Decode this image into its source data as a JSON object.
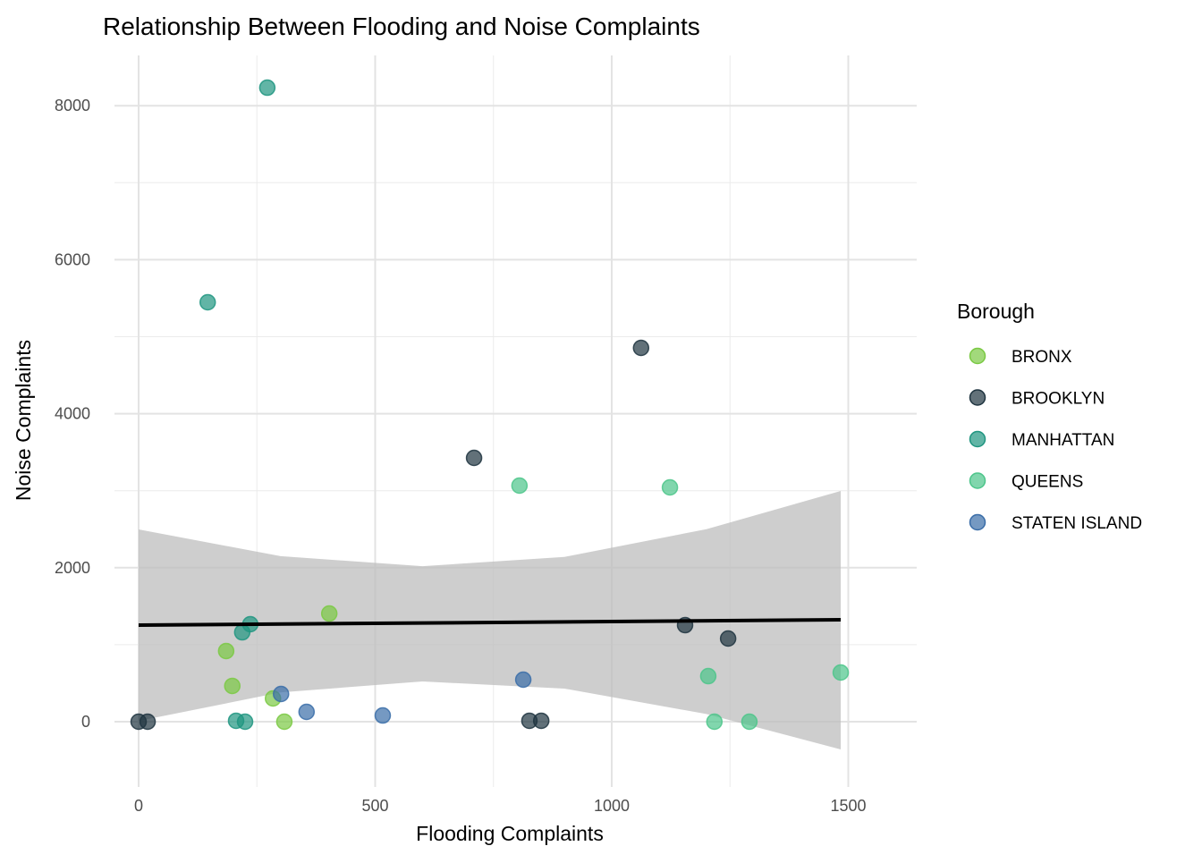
{
  "chart_data": {
    "type": "scatter",
    "title": "Relationship Between Flooding and Noise Complaints",
    "xlabel": "Flooding Complaints",
    "ylabel": "Noise Complaints",
    "xlim": [
      -50,
      1650
    ],
    "ylim": [
      -800,
      8650
    ],
    "xticks": [
      0,
      500,
      1000,
      1500
    ],
    "yticks": [
      0,
      2000,
      4000,
      6000,
      8000
    ],
    "grid": true,
    "legend": {
      "title": "Borough",
      "placement": "right"
    },
    "series": [
      {
        "name": "BRONX",
        "color": "#7AC943",
        "points": [
          [
            403,
            1405
          ],
          [
            185,
            918
          ],
          [
            198,
            465
          ],
          [
            284,
            302
          ],
          [
            308,
            0
          ]
        ]
      },
      {
        "name": "BROOKLYN",
        "color": "#1F3440",
        "points": [
          [
            1062,
            4855
          ],
          [
            709,
            3426
          ],
          [
            1155,
            1254
          ],
          [
            1246,
            1080
          ],
          [
            826,
            12
          ],
          [
            851,
            12
          ],
          [
            0,
            0
          ],
          [
            19,
            0
          ]
        ]
      },
      {
        "name": "MANHATTAN",
        "color": "#1F9580",
        "points": [
          [
            272,
            8234
          ],
          [
            146,
            5447
          ],
          [
            236,
            1266
          ],
          [
            219,
            1161
          ],
          [
            206,
            12
          ],
          [
            225,
            0
          ]
        ]
      },
      {
        "name": "QUEENS",
        "color": "#4CC58A",
        "points": [
          [
            805,
            3066
          ],
          [
            1123,
            3043
          ],
          [
            1484,
            639
          ],
          [
            1204,
            592
          ],
          [
            1217,
            0
          ],
          [
            1291,
            0
          ]
        ]
      },
      {
        "name": "STATEN ISLAND",
        "color": "#3A6DA8",
        "points": [
          [
            301,
            360
          ],
          [
            355,
            128
          ],
          [
            516,
            81
          ],
          [
            813,
            546
          ]
        ]
      }
    ],
    "trend_line": {
      "type": "linear",
      "color": "#000000",
      "x": [
        0,
        1484
      ],
      "y": [
        1254,
        1324
      ]
    },
    "confidence_band": {
      "color": "#BEBEBE",
      "x": [
        0,
        300,
        600,
        900,
        1200,
        1484
      ],
      "upper": [
        2497,
        2150,
        2020,
        2140,
        2500,
        2997
      ],
      "lower": [
        10,
        380,
        523,
        430,
        100,
        -360
      ]
    }
  }
}
